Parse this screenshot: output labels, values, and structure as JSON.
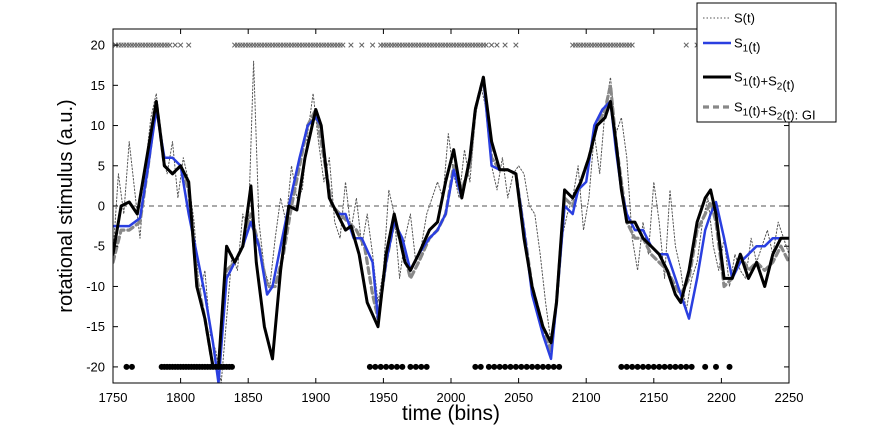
{
  "chart_data": {
    "type": "line",
    "xlabel": "time (bins)",
    "ylabel": "rotational stimulus (a.u.)",
    "xlim": [
      1750,
      2250
    ],
    "ylim": [
      -22,
      22
    ],
    "xticks": [
      1750,
      1800,
      1850,
      1900,
      1950,
      2000,
      2050,
      2100,
      2150,
      2200,
      2250
    ],
    "yticks": [
      -20,
      -15,
      -10,
      -5,
      0,
      5,
      10,
      15,
      20
    ],
    "legend_placement": "top-right",
    "grid": false,
    "zero_line": 0,
    "series": [
      {
        "name": "S(t)",
        "color": "#555555",
        "style": "dotted",
        "x": [
          1750,
          1754,
          1758,
          1762,
          1766,
          1770,
          1774,
          1778,
          1782,
          1786,
          1790,
          1794,
          1798,
          1802,
          1806,
          1810,
          1814,
          1818,
          1822,
          1826,
          1830,
          1834,
          1838,
          1842,
          1846,
          1850,
          1854,
          1858,
          1862,
          1866,
          1870,
          1874,
          1878,
          1882,
          1886,
          1890,
          1894,
          1898,
          1902,
          1906,
          1910,
          1914,
          1918,
          1922,
          1926,
          1930,
          1934,
          1938,
          1942,
          1946,
          1950,
          1954,
          1958,
          1962,
          1966,
          1970,
          1974,
          1978,
          1982,
          1986,
          1990,
          1994,
          1998,
          2002,
          2006,
          2010,
          2014,
          2018,
          2022,
          2026,
          2030,
          2034,
          2038,
          2042,
          2046,
          2050,
          2054,
          2058,
          2062,
          2066,
          2070,
          2074,
          2078,
          2082,
          2086,
          2090,
          2094,
          2098,
          2102,
          2106,
          2110,
          2114,
          2118,
          2122,
          2126,
          2130,
          2134,
          2138,
          2142,
          2146,
          2150,
          2154,
          2158,
          2162,
          2166,
          2170,
          2174,
          2178,
          2182,
          2186,
          2190,
          2194,
          2198,
          2202,
          2206,
          2210,
          2214,
          2218,
          2222,
          2226,
          2230,
          2234,
          2238,
          2242,
          2246,
          2250
        ],
        "y": [
          -6,
          4,
          -1,
          8,
          2,
          -4,
          5,
          11,
          14,
          7,
          4,
          8,
          1,
          6,
          3,
          -2,
          -11,
          -8,
          -16,
          -18,
          -22,
          -14,
          -6,
          -8,
          -1,
          -3,
          18,
          -2,
          -8,
          -10,
          -4,
          1,
          -2,
          5,
          1,
          2,
          9,
          14,
          8,
          3,
          6,
          -2,
          -4,
          3,
          -3,
          1,
          -5,
          -1,
          -6,
          -12,
          -8,
          2,
          -1,
          -9,
          -4,
          -1,
          -7,
          -5,
          -1,
          1,
          3,
          1,
          9,
          4,
          1,
          7,
          3,
          11,
          15,
          12,
          5,
          2,
          6,
          1,
          4,
          5,
          4,
          0,
          -1,
          -6,
          -12,
          -17,
          -13,
          -4,
          -1,
          1,
          5,
          -3,
          1,
          9,
          4,
          12,
          16,
          9,
          11,
          6,
          -4,
          -8,
          -2,
          -6,
          3,
          -2,
          -9,
          2,
          -5,
          -8,
          -13,
          -9,
          -7,
          -2,
          1,
          -5,
          -8,
          -4,
          -10,
          -6,
          -8,
          -9,
          -4,
          -7,
          -5,
          -3,
          -6,
          -2,
          -4,
          -6
        ],
        "label": "S(t)"
      },
      {
        "name": "S1(t)",
        "color": "#2a3fe0",
        "style": "solid",
        "x": [
          1750,
          1762,
          1770,
          1776,
          1782,
          1788,
          1794,
          1800,
          1806,
          1812,
          1818,
          1824,
          1828,
          1834,
          1840,
          1846,
          1852,
          1858,
          1864,
          1868,
          1874,
          1880,
          1888,
          1894,
          1900,
          1904,
          1910,
          1916,
          1922,
          1928,
          1934,
          1942,
          1946,
          1952,
          1958,
          1964,
          1970,
          1976,
          1984,
          1990,
          1996,
          2002,
          2008,
          2014,
          2018,
          2024,
          2030,
          2036,
          2042,
          2048,
          2054,
          2060,
          2068,
          2074,
          2078,
          2084,
          2090,
          2094,
          2100,
          2106,
          2112,
          2118,
          2122,
          2126,
          2130,
          2136,
          2142,
          2148,
          2154,
          2160,
          2166,
          2170,
          2176,
          2182,
          2188,
          2192,
          2196,
          2202,
          2208,
          2214,
          2220,
          2226,
          2232,
          2238,
          2244,
          2250
        ],
        "y": [
          -2.5,
          -2.5,
          -1.5,
          5,
          12,
          6,
          6,
          5,
          -1,
          -6,
          -11,
          -17,
          -22,
          -9,
          -7,
          -5,
          -2,
          -5,
          -11,
          -10,
          -5,
          0,
          6,
          10,
          11,
          10,
          1,
          -1,
          -1,
          -4,
          -4,
          -7,
          -14,
          -7,
          -2,
          -4,
          -8,
          -6,
          -4,
          -3,
          -1,
          4.5,
          1,
          6,
          12,
          16,
          5,
          4.5,
          4.5,
          4,
          -3,
          -11,
          -16,
          -19,
          -12,
          0,
          -1,
          2,
          3,
          10,
          12,
          13,
          7,
          2,
          -1,
          -3,
          -3,
          -5,
          -6,
          -6,
          -9,
          -11,
          -14,
          -9,
          -3,
          -1,
          0.5,
          -4,
          -9,
          -7,
          -6,
          -5,
          -5,
          -4,
          -4,
          -4
        ]
      },
      {
        "name": "S1(t)+S2(t)",
        "color": "#000000",
        "style": "solid",
        "x": [
          1750,
          1756,
          1762,
          1768,
          1774,
          1782,
          1788,
          1794,
          1800,
          1806,
          1812,
          1818,
          1824,
          1828,
          1834,
          1840,
          1846,
          1852,
          1856,
          1862,
          1868,
          1874,
          1880,
          1886,
          1892,
          1900,
          1904,
          1910,
          1916,
          1922,
          1926,
          1932,
          1938,
          1946,
          1952,
          1958,
          1962,
          1966,
          1970,
          1976,
          1984,
          1990,
          1996,
          2002,
          2008,
          2014,
          2018,
          2024,
          2030,
          2036,
          2042,
          2048,
          2054,
          2060,
          2068,
          2074,
          2078,
          2084,
          2090,
          2096,
          2102,
          2108,
          2114,
          2118,
          2122,
          2126,
          2130,
          2136,
          2142,
          2148,
          2154,
          2160,
          2166,
          2170,
          2176,
          2182,
          2188,
          2192,
          2196,
          2202,
          2208,
          2214,
          2220,
          2226,
          2232,
          2238,
          2244,
          2250
        ],
        "y": [
          -6,
          0,
          0.5,
          -1,
          5,
          13,
          5,
          4,
          5,
          3,
          -10,
          -14,
          -20,
          -20,
          -5,
          -7,
          -5,
          2.5,
          -7,
          -15,
          -19,
          -8,
          0,
          -0.5,
          6,
          12,
          10,
          1,
          -1,
          -3,
          -2.5,
          -6,
          -12,
          -15,
          -6,
          -1,
          -4,
          -7,
          -8,
          -6,
          -3,
          -2,
          3,
          7,
          1,
          6,
          12,
          16,
          8,
          4.5,
          4.5,
          4,
          -4,
          -10,
          -15,
          -17,
          -12,
          2,
          1,
          3,
          6,
          10,
          11,
          13,
          8,
          2,
          -2,
          -2,
          -4,
          -5,
          -6,
          -8,
          -11,
          -12,
          -8,
          -2,
          1,
          2,
          -1,
          -9,
          -9,
          -6,
          -9,
          -7,
          -10,
          -6,
          -4,
          -4
        ]
      },
      {
        "name": "S1(t)+S2(t): GI",
        "color": "#888888",
        "style": "dashed",
        "x": [
          1750,
          1756,
          1762,
          1770,
          1776,
          1782,
          1788,
          1794,
          1800,
          1806,
          1812,
          1818,
          1824,
          1828,
          1834,
          1840,
          1846,
          1852,
          1858,
          1864,
          1870,
          1876,
          1882,
          1888,
          1894,
          1900,
          1906,
          1912,
          1918,
          1924,
          1930,
          1936,
          1942,
          1946,
          1952,
          1958,
          1964,
          1970,
          1976,
          1984,
          1990,
          1996,
          2002,
          2008,
          2014,
          2018,
          2024,
          2030,
          2036,
          2042,
          2048,
          2054,
          2060,
          2068,
          2074,
          2078,
          2084,
          2090,
          2096,
          2102,
          2108,
          2114,
          2118,
          2122,
          2126,
          2130,
          2136,
          2142,
          2148,
          2154,
          2160,
          2166,
          2170,
          2176,
          2182,
          2188,
          2192,
          2196,
          2202,
          2208,
          2214,
          2220,
          2226,
          2232,
          2238,
          2244,
          2250
        ],
        "y": [
          -7,
          -3,
          -3,
          -2,
          5,
          13,
          5,
          4,
          5,
          2,
          -9,
          -14,
          -20,
          -20,
          -8,
          -7,
          -5,
          -1,
          -5,
          -10,
          -10,
          -6,
          0,
          5,
          10,
          12,
          6,
          0,
          -1,
          -2,
          -3,
          -5,
          -11,
          -14,
          -7,
          -2,
          -5,
          -9,
          -7,
          -4,
          -3,
          -1,
          5,
          2,
          5,
          12,
          16,
          6,
          4.5,
          4.5,
          4,
          -3,
          -10,
          -15,
          -18,
          -12,
          1,
          0,
          3,
          6,
          10,
          12,
          15,
          8,
          3,
          -2,
          -4,
          -4,
          -6,
          -7,
          -8,
          -10,
          -11,
          -9,
          -3,
          -1,
          0.5,
          -2,
          -10,
          -9,
          -6,
          -8,
          -7,
          -8,
          -7,
          -5,
          -7
        ]
      }
    ],
    "markers_top": {
      "y": 20,
      "symbol": "x",
      "color": "#666666",
      "x": [
        1752,
        1754,
        1756,
        1758,
        1760,
        1762,
        1764,
        1766,
        1768,
        1770,
        1772,
        1774,
        1776,
        1778,
        1780,
        1782,
        1784,
        1786,
        1788,
        1790,
        1792,
        1796,
        1800,
        1806,
        1840,
        1842,
        1844,
        1846,
        1848,
        1850,
        1852,
        1854,
        1856,
        1858,
        1860,
        1862,
        1864,
        1866,
        1868,
        1870,
        1872,
        1874,
        1876,
        1878,
        1880,
        1882,
        1884,
        1886,
        1888,
        1890,
        1892,
        1894,
        1896,
        1898,
        1900,
        1902,
        1904,
        1906,
        1908,
        1910,
        1912,
        1914,
        1916,
        1918,
        1920,
        1926,
        1934,
        1942,
        1948,
        1950,
        1952,
        1954,
        1956,
        1958,
        1960,
        1962,
        1964,
        1966,
        1968,
        1970,
        1972,
        1974,
        1976,
        1978,
        1980,
        1982,
        1984,
        1986,
        1988,
        1990,
        1992,
        1994,
        1996,
        1998,
        2000,
        2002,
        2004,
        2006,
        2008,
        2010,
        2012,
        2014,
        2016,
        2018,
        2020,
        2022,
        2024,
        2026,
        2030,
        2034,
        2040,
        2048,
        2090,
        2092,
        2094,
        2096,
        2098,
        2100,
        2102,
        2104,
        2106,
        2108,
        2110,
        2112,
        2114,
        2116,
        2118,
        2120,
        2122,
        2124,
        2126,
        2128,
        2130,
        2132,
        2134,
        2174,
        2182
      ]
    },
    "markers_bottom": {
      "y": -20,
      "symbol": "dot",
      "color": "#000000",
      "x": [
        1760,
        1764,
        1786,
        1788,
        1790,
        1792,
        1794,
        1796,
        1798,
        1800,
        1802,
        1804,
        1806,
        1808,
        1810,
        1812,
        1814,
        1816,
        1818,
        1820,
        1822,
        1824,
        1826,
        1828,
        1830,
        1832,
        1834,
        1836,
        1838,
        1940,
        1944,
        1948,
        1952,
        1956,
        1960,
        1964,
        1970,
        1974,
        1978,
        1982,
        2018,
        2022,
        2028,
        2032,
        2036,
        2040,
        2044,
        2048,
        2052,
        2056,
        2060,
        2064,
        2068,
        2072,
        2076,
        2080,
        2126,
        2130,
        2134,
        2138,
        2142,
        2146,
        2150,
        2154,
        2158,
        2162,
        2166,
        2170,
        2174,
        2178,
        2188,
        2196,
        2206
      ]
    }
  }
}
